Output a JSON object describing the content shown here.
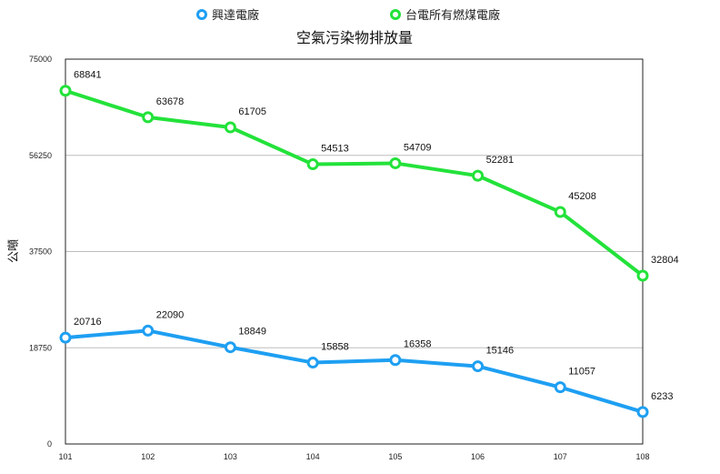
{
  "chart_data": {
    "type": "line",
    "title": "空氣污染物排放量",
    "xlabel": "",
    "ylabel": "公噸",
    "categories": [
      "101",
      "102",
      "103",
      "104",
      "105",
      "106",
      "107",
      "108"
    ],
    "ylim": [
      0,
      75000
    ],
    "yticks": [
      "0",
      "18750",
      "37500",
      "56250",
      "75000"
    ],
    "ytick_values": [
      0,
      18750,
      37500,
      56250,
      75000
    ],
    "grid": true,
    "legend_position": "top-center",
    "series": [
      {
        "name": "興達電廠",
        "color": "#1e9ff2",
        "values": [
          20716,
          22090,
          18849,
          15858,
          16358,
          15146,
          11057,
          6233
        ],
        "labels": [
          "20716",
          "22090",
          "18849",
          "15858",
          "16358",
          "15146",
          "11057",
          "6233"
        ]
      },
      {
        "name": "台電所有燃煤電廠",
        "color": "#23e23a",
        "values": [
          68841,
          63678,
          61705,
          54513,
          54709,
          52281,
          45208,
          32804
        ],
        "labels": [
          "68841",
          "63678",
          "61705",
          "54513",
          "54709",
          "52281",
          "45208",
          "32804"
        ]
      }
    ]
  }
}
